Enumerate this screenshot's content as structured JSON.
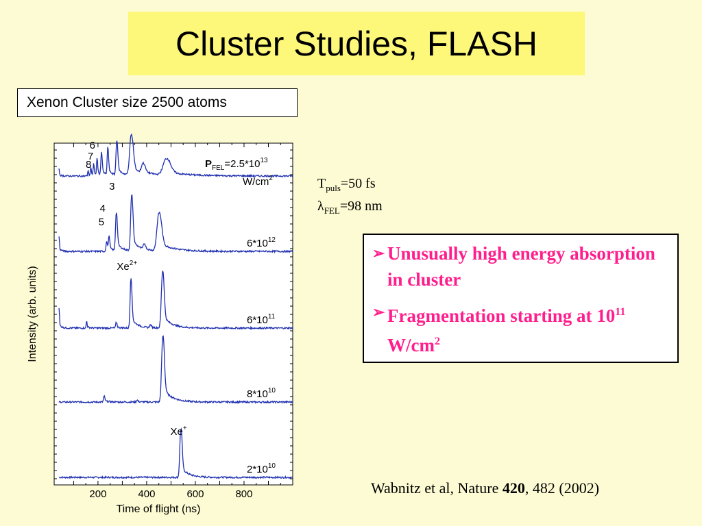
{
  "title": "Cluster Studies, FLASH",
  "subtitle": "Xenon Cluster size  2500 atoms",
  "params": {
    "tpuls_sym": "T",
    "tpuls_sub": "puls",
    "tpuls_val": "=50 fs",
    "lambda_sym": "λ",
    "lambda_sub": "FEL",
    "lambda_val": "=98 nm"
  },
  "bullets": [
    {
      "arrow": "➢",
      "text": "Unusually high energy absorption in cluster"
    },
    {
      "arrow": "➢",
      "text_pre": "Fragmentation starting at 10",
      "sup": "11",
      "text_post": " W/cm",
      "sup2": "2"
    }
  ],
  "reference": {
    "pre": "Wabnitz et al, Nature ",
    "bold": "420",
    "post": ", 482 (2002)"
  },
  "chart_data": {
    "type": "line",
    "xlabel": "Time of flight (ns)",
    "ylabel": "Intensity (arb. units)",
    "xlim": [
      20,
      1000
    ],
    "x_ticks": [
      200,
      400,
      600,
      800
    ],
    "y_ticks": "unlabeled",
    "series": [
      {
        "name": "2*10^10",
        "label_base": "2*10",
        "label_exp": "10",
        "baseline": 0,
        "scale": 1,
        "peaks": [
          [
            540,
            70,
            5
          ]
        ],
        "notes": [
          {
            "text": "Xe",
            "sup": "+",
            "x": 520,
            "level": 62
          }
        ]
      },
      {
        "name": "8*10^10",
        "label_base": "8*10",
        "label_exp": "10",
        "baseline": 110,
        "scale": 1,
        "peaks": [
          [
            466,
            95,
            6
          ],
          [
            225,
            8,
            3
          ],
          [
            360,
            3,
            3
          ]
        ]
      },
      {
        "name": "6*10^11",
        "label_base": "6*10",
        "label_exp": "11",
        "baseline": 218,
        "scale": 1,
        "peaks": [
          [
            465,
            82,
            6
          ],
          [
            335,
            72,
            4
          ],
          [
            275,
            8,
            3
          ],
          [
            40,
            30,
            1.5
          ],
          [
            153,
            10,
            2
          ],
          [
            415,
            4,
            4
          ]
        ],
        "notes": [
          {
            "text": "Xe",
            "sup": "2+",
            "x": 300,
            "level": 85
          }
        ]
      },
      {
        "name": "6*10^12",
        "label_base": "6*10",
        "label_exp": "12",
        "baseline": 330,
        "scale": 1,
        "peaks": [
          [
            338,
            80,
            5
          ],
          [
            450,
            55,
            10
          ],
          [
            275,
            55,
            4
          ],
          [
            245,
            20,
            3
          ],
          [
            235,
            14,
            3
          ],
          [
            40,
            22,
            1.5
          ],
          [
            390,
            8,
            5
          ]
        ],
        "notes": [
          {
            "text": "3",
            "x": 268,
            "level": 90
          },
          {
            "text": "4",
            "x": 230,
            "level": 58
          },
          {
            "text": "5",
            "x": 225,
            "level": 38
          }
        ]
      },
      {
        "name": "2.5*10^13",
        "label_base": "2.5*10",
        "label_exp": "13",
        "baseline": 440,
        "scale": 1,
        "peaks": [
          [
            336,
            58,
            8
          ],
          [
            277,
            50,
            4
          ],
          [
            240,
            40,
            3
          ],
          [
            214,
            32,
            3
          ],
          [
            196,
            24,
            2.5
          ],
          [
            182,
            18,
            2
          ],
          [
            170,
            12,
            2
          ],
          [
            159,
            8,
            2
          ],
          [
            385,
            14,
            8
          ],
          [
            480,
            24,
            16
          ],
          [
            40,
            10,
            1.5
          ]
        ],
        "notes": [
          {
            "text": "6",
            "x": 188,
            "level": 40
          },
          {
            "text": "7",
            "x": 180,
            "level": 24
          },
          {
            "text": "8",
            "x": 172,
            "level": 12
          }
        ]
      }
    ],
    "top_label": {
      "bold": "P",
      "sub": "FEL",
      "val": "=2.5*10",
      "exp": "13",
      "line2": "W/cm",
      "exp2": "2"
    }
  }
}
